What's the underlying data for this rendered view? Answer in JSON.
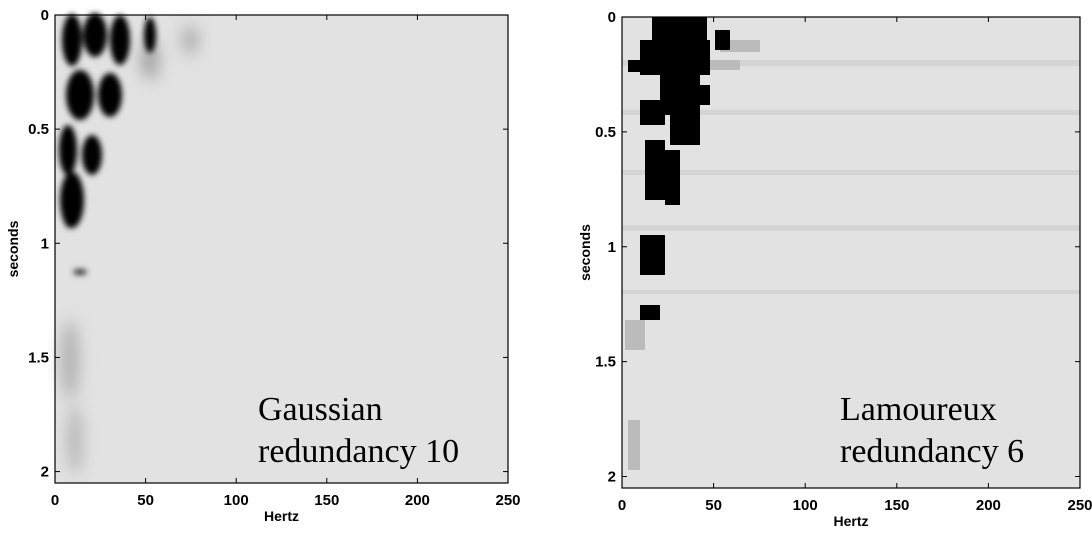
{
  "chart_data": [
    {
      "type": "image",
      "xlabel": "Hertz",
      "ylabel": "seconds",
      "xlim": [
        0,
        250
      ],
      "xticks": [
        0,
        50,
        100,
        150,
        200,
        250
      ],
      "ylim": [
        0,
        2.05
      ],
      "yticks": [
        0,
        0.5,
        1,
        1.5,
        2
      ],
      "y_inverted": true,
      "annotation": [
        "Gaussian",
        "redundancy 10"
      ]
    },
    {
      "type": "image",
      "xlabel": "Hertz",
      "ylabel": "seconds",
      "xlim": [
        0,
        250
      ],
      "xticks": [
        0,
        50,
        100,
        150,
        200,
        250
      ],
      "ylim": [
        0,
        2.05
      ],
      "yticks": [
        0,
        0.5,
        1,
        1.5,
        2
      ],
      "y_inverted": true,
      "annotation": [
        "Lamoureux",
        "redundancy 6"
      ]
    }
  ]
}
